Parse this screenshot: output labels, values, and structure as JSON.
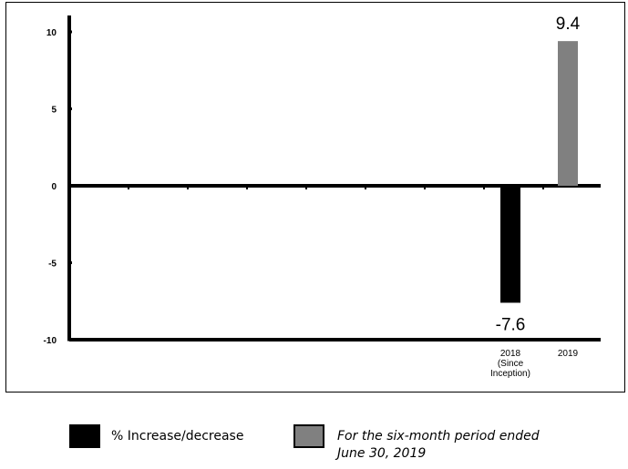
{
  "chart_data": {
    "type": "bar",
    "categories": [
      [
        "2018",
        "(Since",
        "Inception)"
      ],
      [
        "2019"
      ]
    ],
    "series": [
      {
        "name": "% Increase/decrease",
        "color": "#000000",
        "values": [
          -7.6,
          null
        ]
      },
      {
        "name": "For the six-month period ended June 30, 2019",
        "color": "#808080",
        "values": [
          null,
          9.4
        ]
      }
    ],
    "data_labels": [
      "-7.6",
      "9.4"
    ],
    "yticks": [
      "10",
      "5",
      "0",
      "-5",
      "-10"
    ],
    "ylim": [
      -10,
      10
    ],
    "grid": false,
    "legend_position": "bottom"
  },
  "legend": {
    "item1": "% Increase/decrease",
    "item2_line1": "For the six-month period ended",
    "item2_line2": "June 30, 2019"
  }
}
